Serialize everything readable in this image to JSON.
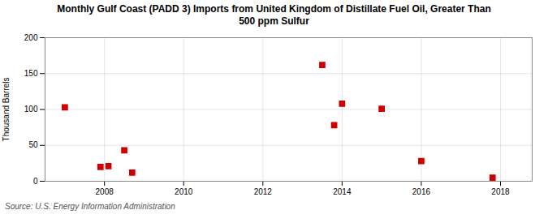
{
  "chart_data": {
    "type": "scatter",
    "title": "Monthly Gulf Coast (PADD 3) Imports from United Kingdom of Distillate Fuel Oil, Greater Than\n500 ppm Sulfur",
    "ylabel": "Thousand Barrels",
    "source": "Source: U.S. Energy Information Administration",
    "x": [
      2007.0,
      2007.9,
      2008.1,
      2008.5,
      2008.7,
      2013.5,
      2013.8,
      2014.0,
      2015.0,
      2016.0,
      2017.8
    ],
    "values": [
      103,
      20,
      21,
      43,
      12,
      162,
      78,
      108,
      101,
      28,
      5
    ],
    "color": "#cc0000",
    "marker": "square",
    "xlim": [
      2006.5,
      2018.8
    ],
    "xticks": [
      2008,
      2010,
      2012,
      2014,
      2016,
      2018
    ],
    "ylim": [
      0,
      200
    ],
    "yticks": [
      0,
      50,
      100,
      150,
      200
    ],
    "grid": true
  }
}
